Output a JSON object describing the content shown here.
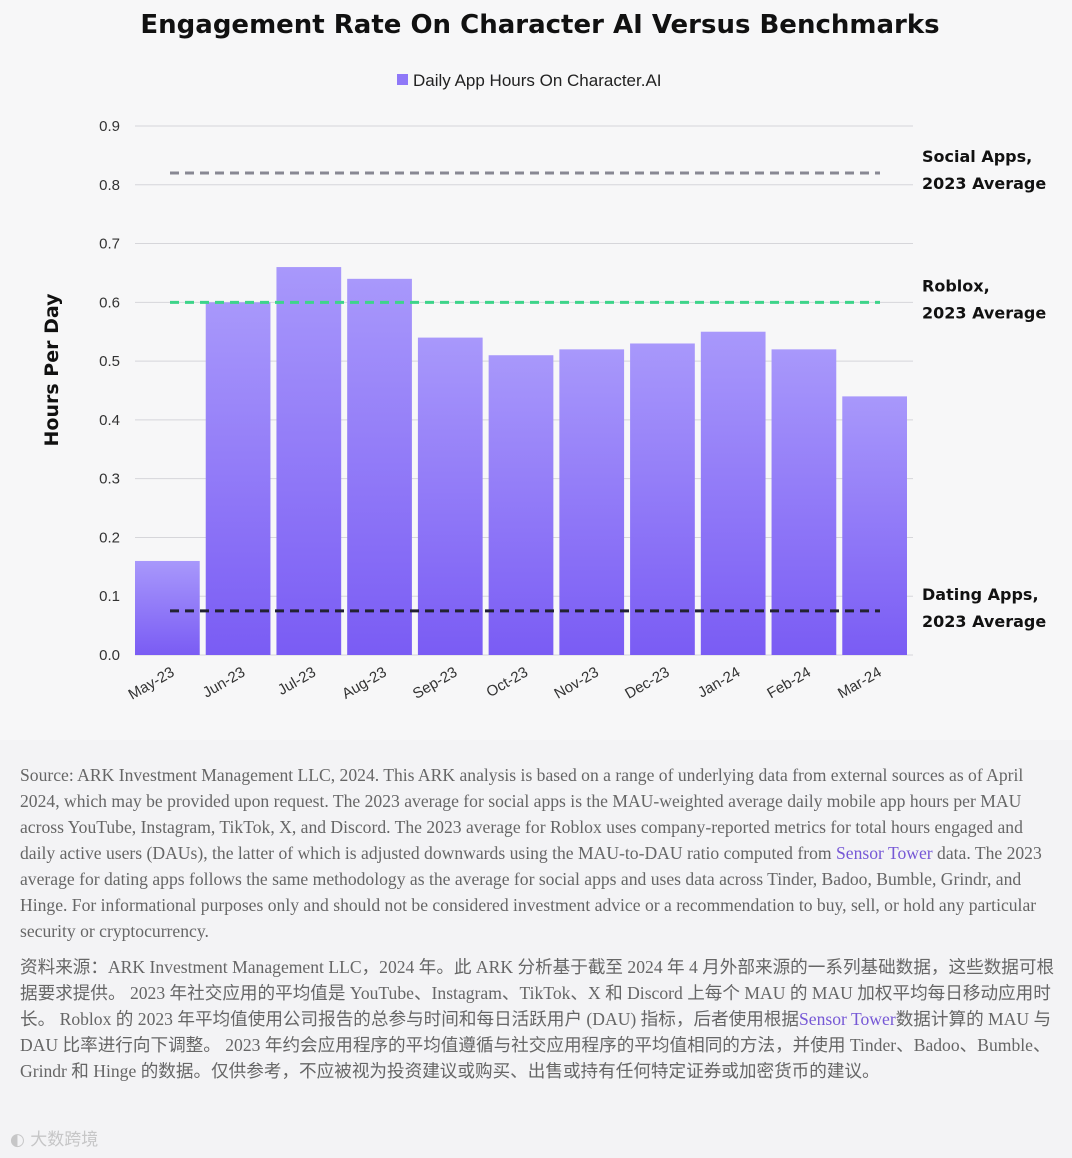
{
  "chart_data": {
    "type": "bar",
    "title": "Engagement Rate On Character AI Versus Benchmarks",
    "legend": "Daily App Hours On Character.AI",
    "ylabel": "Hours Per Day",
    "xlabel": "",
    "ylim": [
      0,
      0.9
    ],
    "yticks": [
      "0.0",
      "0.1",
      "0.2",
      "0.3",
      "0.4",
      "0.5",
      "0.6",
      "0.7",
      "0.8",
      "0.9"
    ],
    "categories": [
      "May-23",
      "Jun-23",
      "Jul-23",
      "Aug-23",
      "Sep-23",
      "Oct-23",
      "Nov-23",
      "Dec-23",
      "Jan-24",
      "Feb-24",
      "Mar-24"
    ],
    "values": [
      0.16,
      0.6,
      0.66,
      0.64,
      0.54,
      0.51,
      0.52,
      0.53,
      0.55,
      0.52,
      0.44
    ],
    "bar_color_top": "#a898fb",
    "bar_color_bottom": "#7a5cf4",
    "benchmarks": [
      {
        "name": "Social Apps, 2023 Average",
        "line1": "Social Apps,",
        "line2": "2023 Average",
        "value": 0.82,
        "color": "#888893"
      },
      {
        "name": "Roblox, 2023 Average",
        "line1": "Roblox,",
        "line2": "2023 Average",
        "value": 0.6,
        "color": "#3ed48a"
      },
      {
        "name": "Dating Apps, 2023 Average",
        "line1": "Dating Apps,",
        "line2": "2023 Average",
        "value": 0.075,
        "color": "#222233"
      }
    ]
  },
  "notes": {
    "en_before_link": "Source: ARK Investment Management LLC, 2024. This ARK analysis is based on a range of underlying data from external sources as of April 2024, which may be provided upon request. The 2023 average for social apps is the MAU-weighted average daily mobile app hours per MAU across YouTube, Instagram, TikTok, X, and Discord. The 2023 average for Roblox uses company-reported metrics for total hours engaged and daily active users (DAUs), the latter of which is adjusted downwards using the MAU-to-DAU ratio computed from ",
    "en_link": "Sensor Tower",
    "en_after_link": " data. The 2023 average for dating apps follows the same methodology as the average for social apps and uses data across Tinder, Badoo, Bumble, Grindr, and Hinge. For informational purposes only and should not be considered investment advice or a recommendation to buy, sell, or hold any particular security or cryptocurrency.",
    "zh_before_link": "资料来源：ARK Investment Management LLC，2024 年。此 ARK 分析基于截至 2024 年 4 月外部来源的一系列基础数据，这些数据可根据要求提供。 2023 年社交应用的平均值是 YouTube、Instagram、TikTok、X 和 Discord 上每个 MAU 的 MAU 加权平均每日移动应用时长。 Roblox 的 2023 年平均值使用公司报告的总参与时间和每日活跃用户 (DAU) 指标，后者使用根据",
    "zh_link": "Sensor Tower",
    "zh_after_link": "数据计算的 MAU 与 DAU 比率进行向下调整。 2023 年约会应用程序的平均值遵循与社交应用程序的平均值相同的方法，并使用 Tinder、Badoo、Bumble、Grindr 和 Hinge 的数据。仅供参考，不应被视为投资建议或购买、出售或持有任何特定证券或加密货币的建议。"
  },
  "watermark": "大数跨境"
}
